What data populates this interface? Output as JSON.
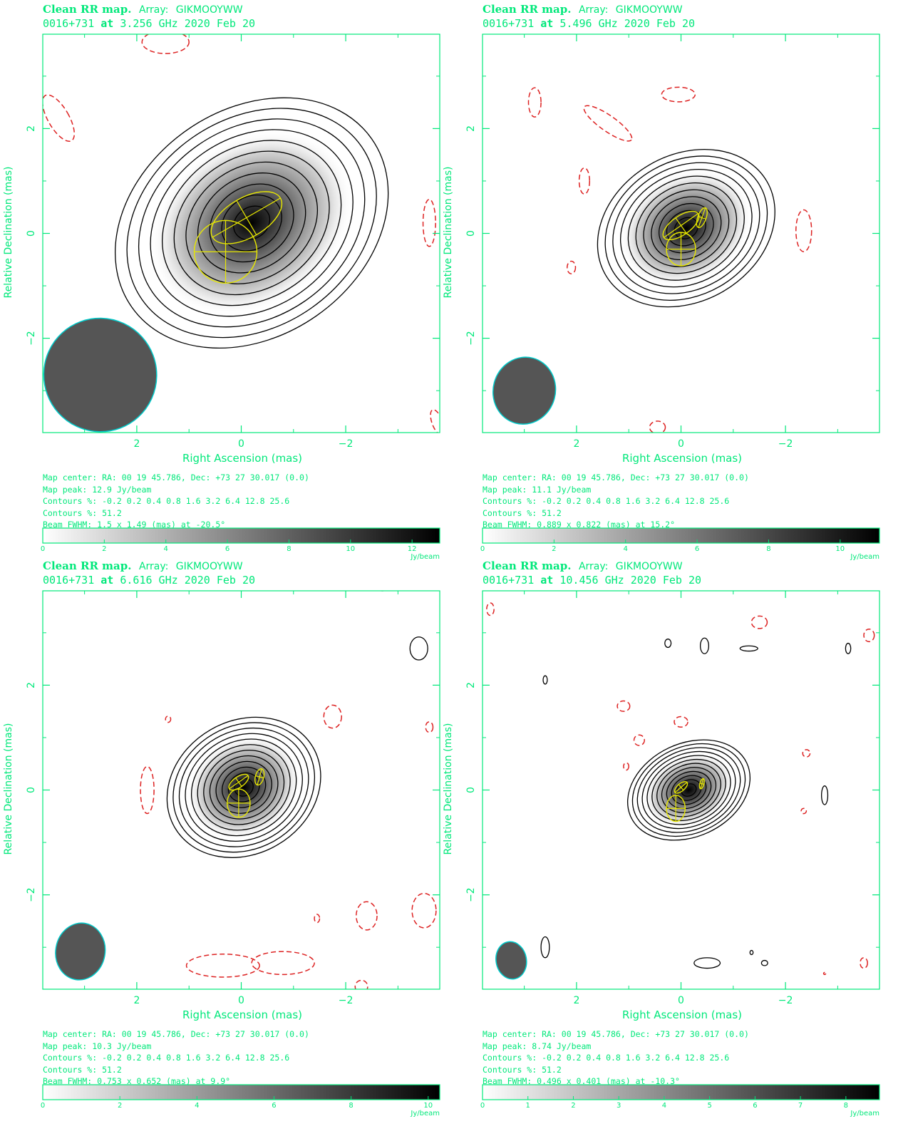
{
  "labels": {
    "map_title": "Clean RR map.",
    "array_label": "Array:",
    "array_value": "GIKMOOYWW",
    "source": "0016+731",
    "at": "at",
    "date": "2020 Feb 20",
    "xlabel": "Right Ascension  (mas)",
    "ylabel": "Relative Declination  (mas)",
    "colorbar_unit": "Jy/beam",
    "map_center": "Map center:  RA: 00 19 45.786,  Dec: +73 27 30.017 (0.0)",
    "contours_1": "Contours %: -0.2 0.2 0.4 0.8 1.6 3.2 6.4 12.8 25.6",
    "contours_2": "Contours %: 51.2"
  },
  "colors": {
    "axes": "#00e87a",
    "positive_contour": "#000000",
    "negative_contour": "#dd2222",
    "model_component": "#e8e800",
    "beam_fill": "#555555",
    "beam_edge": "#00cccc"
  },
  "chart_data": [
    {
      "type": "heatmap",
      "frequency": "3.256 GHz",
      "peak_text": "Map peak: 12.9 Jy/beam",
      "beam_text": "Beam FWHM: 1.5 x 1.49 (mas) at -20.5°",
      "peak": 12.9,
      "beam": {
        "major": 1.5,
        "minor": 1.49,
        "pa": -20.5,
        "x": 2.7,
        "y": -2.7
      },
      "xlim": [
        3.8,
        -3.8
      ],
      "ylim": [
        -3.8,
        3.8
      ],
      "xticks": [
        2,
        0,
        -2
      ],
      "yticks": [
        2,
        0,
        -2
      ],
      "colorbar": {
        "max": 12.9,
        "ticks": [
          0,
          2,
          4,
          6,
          8,
          10,
          12
        ]
      },
      "source_sigma": [
        1.1,
        0.85
      ],
      "source_center": [
        -0.2,
        0.2
      ],
      "source_angle": 35,
      "n_contours": 11,
      "contour_scale": 1.0,
      "components": [
        {
          "x": -0.1,
          "y": 0.3,
          "major": 0.75,
          "minor": 0.38,
          "pa": 60
        },
        {
          "x": 0.3,
          "y": -0.35,
          "major": 0.6,
          "minor": 0.6,
          "pa": 0
        }
      ],
      "negatives": [
        {
          "x": 1.45,
          "y": 3.65,
          "rx": 0.45,
          "ry": 0.22,
          "rot": 0
        },
        {
          "x": 3.5,
          "y": 2.2,
          "rx": 0.2,
          "ry": 0.5,
          "rot": 30
        },
        {
          "x": -3.6,
          "y": 0.2,
          "rx": 0.12,
          "ry": 0.45,
          "rot": 0
        },
        {
          "x": -3.75,
          "y": -3.6,
          "rx": 0.1,
          "ry": 0.25,
          "rot": 20
        }
      ],
      "positives": []
    },
    {
      "type": "heatmap",
      "frequency": "5.496 GHz",
      "peak_text": "Map peak: 11.1 Jy/beam",
      "beam_text": "Beam FWHM: 0.889 x 0.822 (mas) at 15.2°",
      "peak": 11.1,
      "beam": {
        "major": 0.889,
        "minor": 0.822,
        "pa": 15.2,
        "x": 3.0,
        "y": -3.0
      },
      "xlim": [
        3.8,
        -3.8
      ],
      "ylim": [
        -3.8,
        3.8
      ],
      "xticks": [
        2,
        0,
        -2
      ],
      "yticks": [
        2,
        0,
        -2
      ],
      "colorbar": {
        "max": 11.1,
        "ticks": [
          0,
          2,
          4,
          6,
          8,
          10
        ]
      },
      "source_sigma": [
        0.7,
        0.55
      ],
      "source_center": [
        -0.1,
        0.1
      ],
      "source_angle": 30,
      "n_contours": 11,
      "contour_scale": 0.62,
      "components": [
        {
          "x": 0.0,
          "y": 0.15,
          "major": 0.4,
          "minor": 0.18,
          "pa": 55
        },
        {
          "x": -0.4,
          "y": 0.3,
          "major": 0.2,
          "minor": 0.08,
          "pa": 20
        },
        {
          "x": 0.0,
          "y": -0.3,
          "major": 0.32,
          "minor": 0.28,
          "pa": 0
        }
      ],
      "negatives": [
        {
          "x": 2.8,
          "y": 2.5,
          "rx": 0.12,
          "ry": 0.28,
          "rot": 0
        },
        {
          "x": 1.4,
          "y": 2.1,
          "rx": 0.55,
          "ry": 0.15,
          "rot": -35
        },
        {
          "x": 0.05,
          "y": 2.65,
          "rx": 0.32,
          "ry": 0.14,
          "rot": 0
        },
        {
          "x": 1.85,
          "y": 1.0,
          "rx": 0.1,
          "ry": 0.25,
          "rot": 0
        },
        {
          "x": -2.35,
          "y": 0.05,
          "rx": 0.15,
          "ry": 0.4,
          "rot": 0
        },
        {
          "x": 2.1,
          "y": -0.65,
          "rx": 0.08,
          "ry": 0.12,
          "rot": 0
        },
        {
          "x": 0.45,
          "y": -3.7,
          "rx": 0.15,
          "ry": 0.12,
          "rot": 0
        }
      ],
      "positives": []
    },
    {
      "type": "heatmap",
      "frequency": "6.616 GHz",
      "peak_text": "Map peak: 10.3 Jy/beam",
      "beam_text": "Beam FWHM: 0.753 x 0.652 (mas) at 9.9°",
      "peak": 10.3,
      "beam": {
        "major": 0.753,
        "minor": 0.652,
        "pa": 9.9,
        "x": 3.08,
        "y": -3.08
      },
      "xlim": [
        3.8,
        -3.8
      ],
      "ylim": [
        -3.8,
        3.8
      ],
      "xticks": [
        2,
        0,
        -2
      ],
      "yticks": [
        2,
        0,
        -2
      ],
      "colorbar": {
        "max": 10.3,
        "ticks": [
          0,
          2,
          4,
          6,
          8,
          10
        ]
      },
      "source_sigma": [
        0.6,
        0.5
      ],
      "source_center": [
        -0.05,
        0.05
      ],
      "source_angle": 30,
      "n_contours": 12,
      "contour_scale": 0.55,
      "components": [
        {
          "x": 0.05,
          "y": 0.15,
          "major": 0.22,
          "minor": 0.1,
          "pa": 55
        },
        {
          "x": -0.35,
          "y": 0.25,
          "major": 0.16,
          "minor": 0.08,
          "pa": 15
        },
        {
          "x": 0.05,
          "y": -0.25,
          "major": 0.27,
          "minor": 0.22,
          "pa": 0
        }
      ],
      "negatives": [
        {
          "x": 1.8,
          "y": 0.0,
          "rx": 0.13,
          "ry": 0.45,
          "rot": 0
        },
        {
          "x": -1.75,
          "y": 1.4,
          "rx": 0.17,
          "ry": 0.22,
          "rot": 0
        },
        {
          "x": -3.6,
          "y": 1.2,
          "rx": 0.07,
          "ry": 0.1,
          "rot": 0
        },
        {
          "x": 1.4,
          "y": 1.35,
          "rx": 0.05,
          "ry": 0.06,
          "rot": 0
        },
        {
          "x": -2.4,
          "y": -2.4,
          "rx": 0.2,
          "ry": 0.27,
          "rot": 0
        },
        {
          "x": -3.5,
          "y": -2.3,
          "rx": 0.23,
          "ry": 0.33,
          "rot": 0
        },
        {
          "x": 0.35,
          "y": -3.35,
          "rx": 0.7,
          "ry": 0.22,
          "rot": 0
        },
        {
          "x": -0.8,
          "y": -3.3,
          "rx": 0.6,
          "ry": 0.22,
          "rot": 0
        },
        {
          "x": -1.45,
          "y": -2.45,
          "rx": 0.05,
          "ry": 0.08,
          "rot": 0
        },
        {
          "x": -2.3,
          "y": -3.75,
          "rx": 0.12,
          "ry": 0.12,
          "rot": 0
        }
      ],
      "positives": [
        {
          "x": -3.4,
          "y": 2.7,
          "rx": 0.17,
          "ry": 0.22,
          "rot": 0
        },
        {
          "x": -2.7,
          "y": 3.85,
          "rx": 0.1,
          "ry": 0.05,
          "rot": 0
        }
      ]
    },
    {
      "type": "heatmap",
      "frequency": "10.456 GHz",
      "peak_text": "Map peak: 8.74 Jy/beam",
      "beam_text": "Beam FWHM: 0.496 x 0.401 (mas) at -10.3°",
      "peak": 8.74,
      "beam": {
        "major": 0.496,
        "minor": 0.401,
        "pa": -10.3,
        "x": 3.25,
        "y": -3.25
      },
      "xlim": [
        3.8,
        -3.8
      ],
      "ylim": [
        -3.8,
        3.8
      ],
      "xticks": [
        2,
        0,
        -2
      ],
      "yticks": [
        2,
        0,
        -2
      ],
      "colorbar": {
        "max": 8.74,
        "ticks": [
          0,
          1,
          2,
          3,
          4,
          5,
          6,
          7,
          8
        ]
      },
      "source_sigma": [
        0.48,
        0.35
      ],
      "source_center": [
        -0.15,
        0.0
      ],
      "source_angle": 25,
      "n_contours": 12,
      "contour_scale": 0.5,
      "components": [
        {
          "x": 0.0,
          "y": 0.05,
          "major": 0.15,
          "minor": 0.07,
          "pa": 50
        },
        {
          "x": -0.4,
          "y": 0.12,
          "major": 0.1,
          "minor": 0.04,
          "pa": 15
        },
        {
          "x": 0.1,
          "y": -0.35,
          "major": 0.25,
          "minor": 0.18,
          "pa": 0
        }
      ],
      "negatives": [
        {
          "x": 3.65,
          "y": 3.45,
          "rx": 0.07,
          "ry": 0.12,
          "rot": 0
        },
        {
          "x": -1.5,
          "y": 3.2,
          "rx": 0.15,
          "ry": 0.12,
          "rot": 0
        },
        {
          "x": -3.6,
          "y": 2.95,
          "rx": 0.1,
          "ry": 0.12,
          "rot": 0
        },
        {
          "x": 1.1,
          "y": 1.6,
          "rx": 0.12,
          "ry": 0.1,
          "rot": 0
        },
        {
          "x": 0.0,
          "y": 1.3,
          "rx": 0.13,
          "ry": 0.1,
          "rot": 0
        },
        {
          "x": 0.8,
          "y": 0.95,
          "rx": 0.1,
          "ry": 0.1,
          "rot": 0
        },
        {
          "x": 1.05,
          "y": 0.45,
          "rx": 0.05,
          "ry": 0.07,
          "rot": 0
        },
        {
          "x": -2.4,
          "y": 0.7,
          "rx": 0.07,
          "ry": 0.07,
          "rot": 0
        },
        {
          "x": -2.35,
          "y": -0.4,
          "rx": 0.05,
          "ry": 0.05,
          "rot": 0
        },
        {
          "x": -3.5,
          "y": -3.3,
          "rx": 0.07,
          "ry": 0.1,
          "rot": 0
        },
        {
          "x": -2.75,
          "y": -3.5,
          "rx": 0.02,
          "ry": 0.02,
          "rot": 0
        }
      ],
      "positives": [
        {
          "x": 0.25,
          "y": 2.8,
          "rx": 0.06,
          "ry": 0.08,
          "rot": 0
        },
        {
          "x": -0.45,
          "y": 2.75,
          "rx": 0.08,
          "ry": 0.15,
          "rot": 0
        },
        {
          "x": -1.3,
          "y": 2.7,
          "rx": 0.17,
          "ry": 0.05,
          "rot": 0
        },
        {
          "x": -3.2,
          "y": 2.7,
          "rx": 0.05,
          "ry": 0.1,
          "rot": 0
        },
        {
          "x": 2.6,
          "y": 2.1,
          "rx": 0.04,
          "ry": 0.08,
          "rot": 0
        },
        {
          "x": -2.75,
          "y": -0.1,
          "rx": 0.06,
          "ry": 0.18,
          "rot": 0
        },
        {
          "x": 2.6,
          "y": -3.0,
          "rx": 0.08,
          "ry": 0.2,
          "rot": 0
        },
        {
          "x": -0.5,
          "y": -3.3,
          "rx": 0.25,
          "ry": 0.1,
          "rot": 0
        },
        {
          "x": -1.35,
          "y": -3.1,
          "rx": 0.03,
          "ry": 0.04,
          "rot": 0
        },
        {
          "x": -1.6,
          "y": -3.3,
          "rx": 0.06,
          "ry": 0.05,
          "rot": 0
        }
      ]
    }
  ]
}
